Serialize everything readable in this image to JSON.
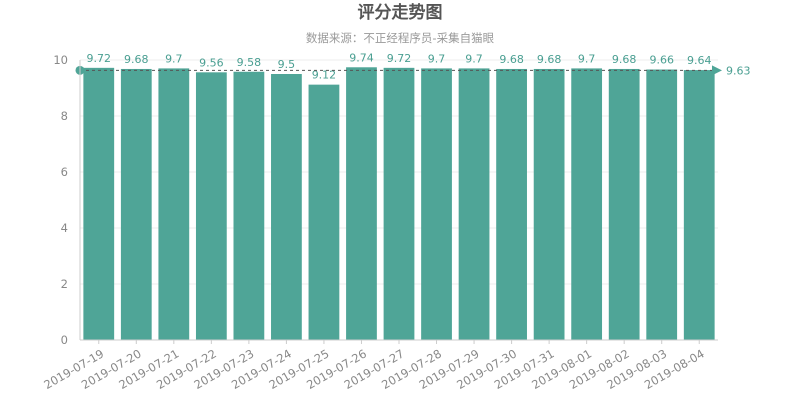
{
  "chart_data": {
    "type": "bar",
    "title": "评分走势图",
    "subtitle": "数据来源：不正经程序员-采集自猫眼",
    "categories": [
      "2019-07-19",
      "2019-07-20",
      "2019-07-21",
      "2019-07-22",
      "2019-07-23",
      "2019-07-24",
      "2019-07-25",
      "2019-07-26",
      "2019-07-27",
      "2019-07-28",
      "2019-07-29",
      "2019-07-30",
      "2019-07-31",
      "2019-08-01",
      "2019-08-02",
      "2019-08-03",
      "2019-08-04"
    ],
    "values": [
      9.72,
      9.68,
      9.7,
      9.56,
      9.58,
      9.5,
      9.12,
      9.74,
      9.72,
      9.7,
      9.7,
      9.68,
      9.68,
      9.7,
      9.68,
      9.66,
      9.64
    ],
    "value_labels": [
      "9.72",
      "9.68",
      "9.7",
      "9.56",
      "9.58",
      "9.5",
      "9.12",
      "9.74",
      "9.72",
      "9.7",
      "9.7",
      "9.68",
      "9.68",
      "9.7",
      "9.68",
      "9.66",
      "9.64"
    ],
    "ylim": [
      0,
      10
    ],
    "yticks": [
      "0",
      "2",
      "4",
      "6",
      "8",
      "10"
    ],
    "average_line": {
      "value": 9.63,
      "label": "9.63"
    },
    "grid": true,
    "colors": {
      "bar": "#4fa597",
      "label": "#4a9f92",
      "axis": "#cccccc",
      "grid": "#eeeeee",
      "marker": "#4fa597"
    }
  }
}
